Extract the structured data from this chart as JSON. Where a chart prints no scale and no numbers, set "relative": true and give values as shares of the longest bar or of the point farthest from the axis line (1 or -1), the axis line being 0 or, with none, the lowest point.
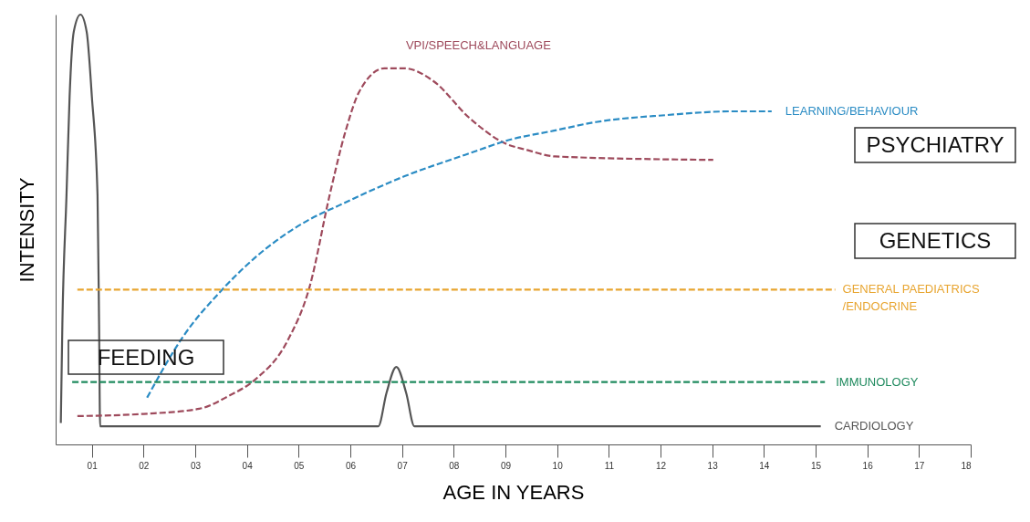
{
  "chart_data": {
    "type": "line",
    "relative": true,
    "xlabel": "AGE IN YEARS",
    "ylabel": "INTENSITY",
    "xlim": [
      0.3,
      18
    ],
    "xticks": [
      {
        "value": 1,
        "label": "01"
      },
      {
        "value": 2,
        "label": "02"
      },
      {
        "value": 3,
        "label": "03"
      },
      {
        "value": 4,
        "label": "04"
      },
      {
        "value": 5,
        "label": "05"
      },
      {
        "value": 6,
        "label": "06"
      },
      {
        "value": 7,
        "label": "07"
      },
      {
        "value": 8,
        "label": "08"
      },
      {
        "value": 9,
        "label": "09"
      },
      10,
      11,
      12,
      13,
      14,
      15,
      16,
      17,
      18
    ],
    "grid": false,
    "marker": "none",
    "series": [
      {
        "name": "CARDIOLOGY",
        "color": "#555555",
        "line_style": "solid",
        "x": [
          0.4,
          0.43,
          0.51,
          0.57,
          0.65,
          0.78,
          0.9,
          1.0,
          1.11,
          1.14,
          1.16,
          6.54,
          6.7,
          6.89,
          7.08,
          7.24,
          15.1
        ],
        "values": [
          0.05,
          0.28,
          0.58,
          0.81,
          0.96,
          1.0,
          0.96,
          0.81,
          0.58,
          0.28,
          0.042,
          0.042,
          0.12,
          0.18,
          0.12,
          0.042,
          0.042
        ]
      },
      {
        "name": "VPI/SPEECH&LANGUAGE",
        "color": "#9e4a5c",
        "line_style": "dashed",
        "x": [
          0.72,
          2.0,
          3.08,
          3.65,
          4.15,
          4.78,
          5.22,
          5.6,
          5.91,
          6.17,
          6.66,
          7.05,
          7.61,
          8.3,
          9.0,
          9.42,
          9.96,
          13.02
        ],
        "values": [
          0.066,
          0.071,
          0.083,
          0.113,
          0.15,
          0.24,
          0.37,
          0.58,
          0.73,
          0.82,
          0.875,
          0.875,
          0.845,
          0.76,
          0.7,
          0.685,
          0.67,
          0.662
        ]
      },
      {
        "name": "LEARNING/BEHAVIOUR",
        "color": "#2b8cc4",
        "line_style": "dashed",
        "x": [
          2.07,
          2.76,
          3.52,
          4.21,
          5.16,
          5.78,
          7.05,
          8.3,
          9.06,
          9.94,
          10.75,
          12.09,
          13.42,
          14.15
        ],
        "values": [
          0.109,
          0.25,
          0.36,
          0.44,
          0.52,
          0.556,
          0.624,
          0.677,
          0.708,
          0.73,
          0.75,
          0.766,
          0.775,
          0.775
        ]
      },
      {
        "name": "GENERAL PAEDIATRICS\n/ENDOCRINE",
        "color": "#e8a530",
        "line_style": "dashed",
        "x": [
          0.72,
          15.38
        ],
        "values": [
          0.36,
          0.36
        ]
      },
      {
        "name": "IMMUNOLOGY",
        "color": "#1f8a5e",
        "line_style": "dashed",
        "x": [
          0.62,
          15.18
        ],
        "values": [
          0.145,
          0.145
        ]
      }
    ],
    "annotations": [
      "FEEDING",
      "PSYCHIATRY",
      "GENETICS"
    ]
  }
}
